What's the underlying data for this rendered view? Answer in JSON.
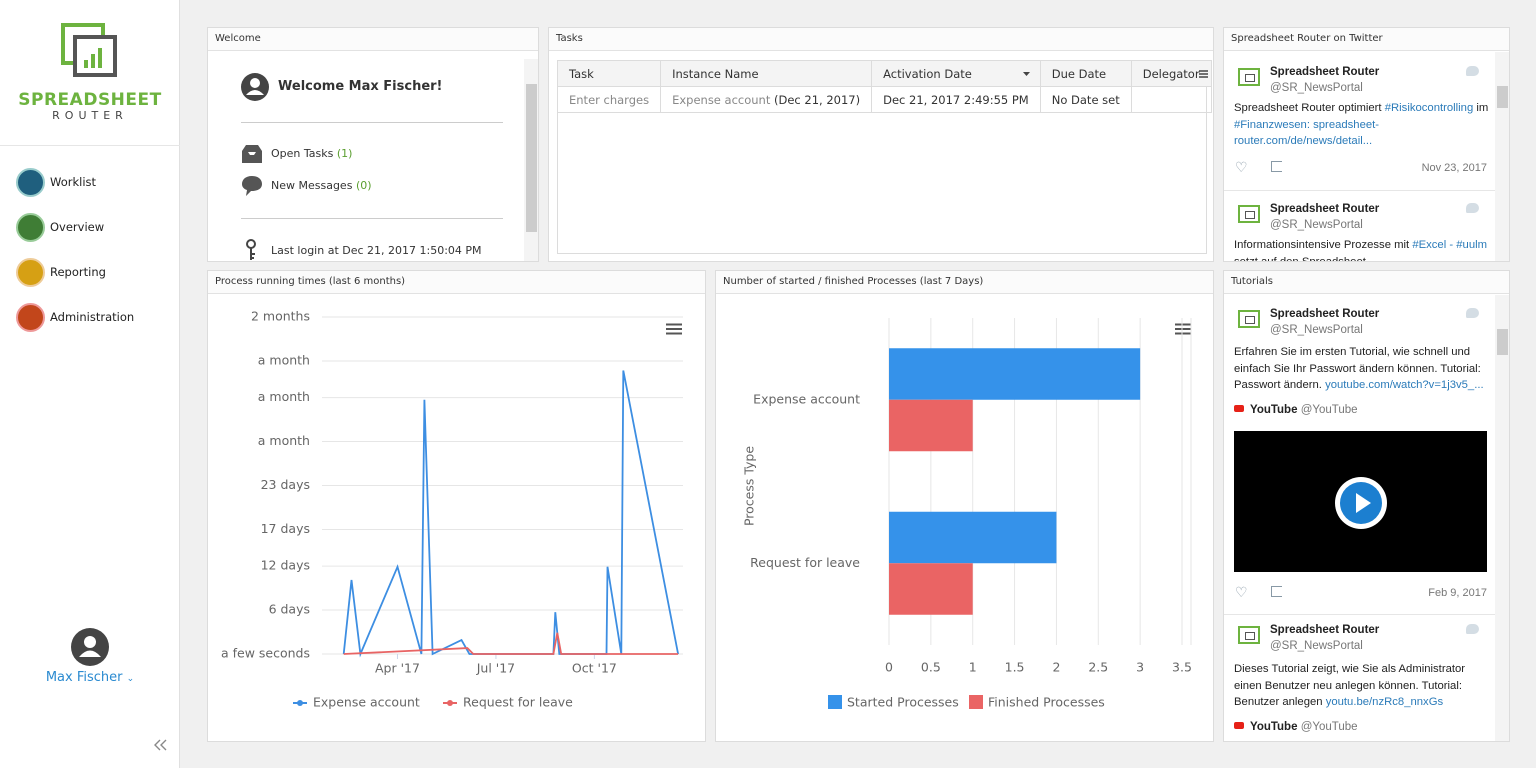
{
  "sidebar": {
    "brand": "SPREADSHEET",
    "brand_sub": "ROUTER",
    "nav": [
      "Worklist",
      "Overview",
      "Reporting",
      "Administration"
    ],
    "user": "Max Fischer"
  },
  "welcome": {
    "title": "Welcome",
    "greeting": "Welcome Max Fischer!",
    "items": [
      {
        "label": "Open Tasks",
        "count": "(1)"
      },
      {
        "label": "New Messages",
        "count": "(0)"
      }
    ],
    "last_login": "Last login at Dec 21, 2017 1:50:04 PM"
  },
  "tasks": {
    "title": "Tasks",
    "columns": [
      "Task",
      "Instance Name",
      "Activation Date",
      "Due Date",
      "Delegator"
    ],
    "rows": [
      {
        "task": "Enter charges",
        "instance": "Expense account",
        "instance_date": "(Dec 21, 2017)",
        "activation": "Dec 21, 2017 2:49:55 PM",
        "due": "No Date set"
      }
    ]
  },
  "twitter": {
    "title": "Spreadsheet Router on Twitter",
    "tweets": [
      {
        "name": "Spreadsheet Router",
        "handle": "@SR_NewsPortal",
        "text": [
          "Spreadsheet Router optimiert ",
          "#Risikocontrolling",
          " im ",
          "#Finanzwesen: spreadsheet-router.com/de/news/detail..."
        ],
        "date": "Nov 23, 2017"
      },
      {
        "name": "Spreadsheet Router",
        "handle": "@SR_NewsPortal",
        "text": [
          "Informationsintensive Prozesse mit ",
          "#Excel -  #uulm",
          " setzt auf den Spreadsheet..."
        ]
      }
    ]
  },
  "tutorials": {
    "title": "Tutorials",
    "tweets": [
      {
        "name": "Spreadsheet Router",
        "handle": "@SR_NewsPortal",
        "text": [
          "Erfahren Sie im ersten Tutorial, wie schnell und einfach Sie Ihr Passwort ändern können. Tutorial: Passwort ändern. ",
          "youtube.com/watch?v=1j3v5_..."
        ],
        "card": {
          "name": "YouTube",
          "handle": "@YouTube"
        },
        "date": "Feb 9, 2017"
      },
      {
        "name": "Spreadsheet Router",
        "handle": "@SR_NewsPortal",
        "text": [
          "Dieses Tutorial zeigt, wie Sie als Administrator einen Benutzer neu anlegen können. Tutorial: Benutzer anlegen ",
          "youtu.be/nzRc8_nnxGs"
        ],
        "card": {
          "name": "YouTube",
          "handle": "@YouTube"
        }
      }
    ]
  },
  "chart_data": [
    {
      "type": "line",
      "title": "Process running times (last 6 months)",
      "grid": true,
      "legend": "bottom",
      "xlim": [
        0.7,
        11.7
      ],
      "xticks": [
        {
          "value": 3,
          "label": "Apr '17"
        },
        {
          "value": 6,
          "label": "Jul '17"
        },
        {
          "value": 9,
          "label": "Oct '17"
        }
      ],
      "ylim": [
        0,
        46
      ],
      "yticks": [
        {
          "value": 0,
          "label": "a few seconds"
        },
        {
          "value": 6,
          "label": "6 days"
        },
        {
          "value": 12,
          "label": "12 days"
        },
        {
          "value": 17,
          "label": "17 days"
        },
        {
          "value": 23,
          "label": "23 days"
        },
        {
          "value": 29,
          "label": "a month"
        },
        {
          "value": 35,
          "label": "a month"
        },
        {
          "value": 40,
          "label": "a month"
        },
        {
          "value": 46,
          "label": "2 months"
        }
      ],
      "series": [
        {
          "name": "Expense account",
          "color": "#3d8ee2",
          "x": [
            1.36,
            1.6,
            1.87,
            3.0,
            3.73,
            3.82,
            4.07,
            4.95,
            5.19,
            7.75,
            7.81,
            7.93,
            9.37,
            9.4,
            9.82,
            9.88,
            11.55
          ],
          "values": [
            0,
            10.1,
            0,
            11.9,
            0,
            34.7,
            0,
            1.9,
            0,
            0,
            5.7,
            0,
            0,
            11.9,
            0,
            38.7,
            0
          ]
        },
        {
          "name": "Request for leave",
          "color": "#e86464",
          "x": [
            1.36,
            5.13,
            5.31,
            7.75,
            7.87,
            7.99,
            11.55
          ],
          "values": [
            0,
            0.8,
            0,
            0,
            2.9,
            0,
            0
          ]
        }
      ]
    },
    {
      "type": "bar",
      "orientation": "horizontal",
      "title": "Number of started / finished Processes (last 7 Days)",
      "grid": true,
      "legend": "bottom",
      "y_label": "Process Type",
      "categories": [
        "Expense account",
        "Request for leave"
      ],
      "xlim": [
        0,
        3.5
      ],
      "xticks": [
        0,
        0.5,
        1,
        1.5,
        2,
        2.5,
        3,
        3.5
      ],
      "series": [
        {
          "name": "Started Processes",
          "color": "#3592ea",
          "values": [
            3,
            2
          ]
        },
        {
          "name": "Finished Processes",
          "color": "#ea6464",
          "values": [
            1,
            1
          ]
        }
      ]
    }
  ]
}
